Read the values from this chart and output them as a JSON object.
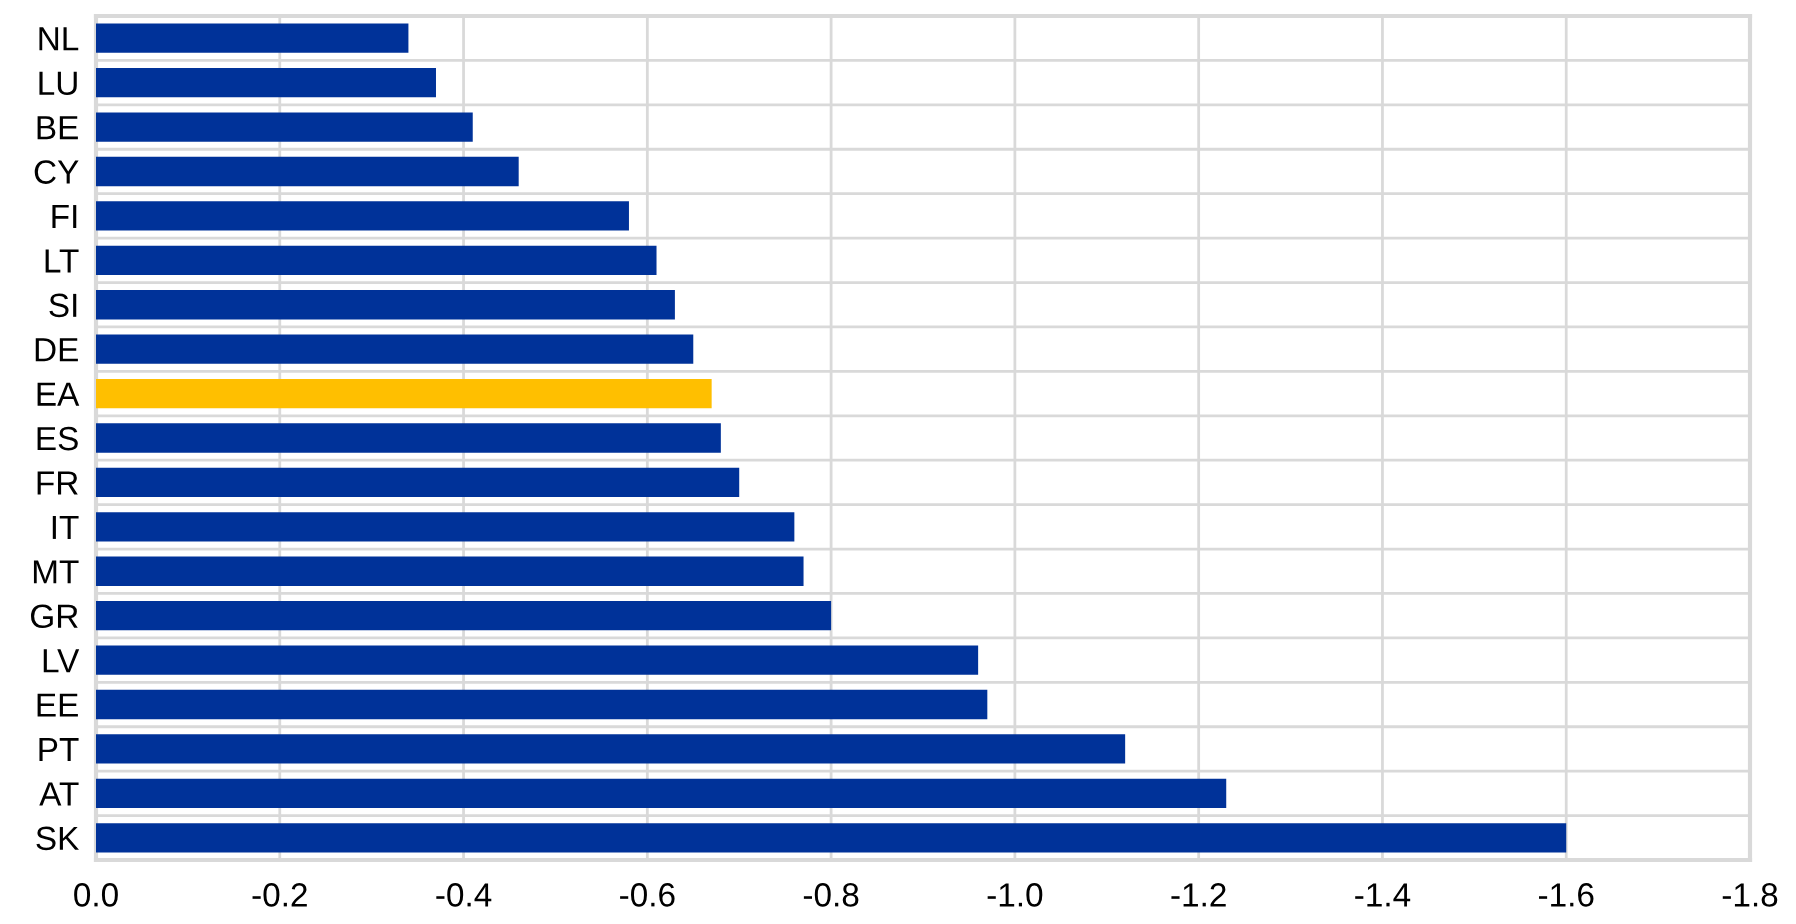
{
  "chart_data": {
    "type": "bar",
    "orientation": "horizontal",
    "categories": [
      "NL",
      "LU",
      "BE",
      "CY",
      "FI",
      "LT",
      "SI",
      "DE",
      "EA",
      "ES",
      "FR",
      "IT",
      "MT",
      "GR",
      "LV",
      "EE",
      "PT",
      "AT",
      "SK"
    ],
    "values": [
      -0.34,
      -0.37,
      -0.41,
      -0.46,
      -0.58,
      -0.61,
      -0.63,
      -0.65,
      -0.67,
      -0.68,
      -0.7,
      -0.76,
      -0.77,
      -0.8,
      -0.96,
      -0.97,
      -1.12,
      -1.23,
      -1.6
    ],
    "colors": [
      "#003299",
      "#003299",
      "#003299",
      "#003299",
      "#003299",
      "#003299",
      "#003299",
      "#003299",
      "#ffbf00",
      "#003299",
      "#003299",
      "#003299",
      "#003299",
      "#003299",
      "#003299",
      "#003299",
      "#003299",
      "#003299",
      "#003299"
    ],
    "xlim": [
      0.0,
      -1.8
    ],
    "xticks": [
      {
        "value": 0.0,
        "label": "0.0"
      },
      {
        "value": -0.2,
        "label": "-0.2"
      },
      {
        "value": -0.4,
        "label": "-0.4"
      },
      {
        "value": -0.6,
        "label": "-0.6"
      },
      {
        "value": -0.8,
        "label": "-0.8"
      },
      {
        "value": -1.0,
        "label": "-1.0"
      },
      {
        "value": -1.2,
        "label": "-1.2"
      },
      {
        "value": -1.4,
        "label": "-1.4"
      },
      {
        "value": -1.6,
        "label": "-1.6"
      },
      {
        "value": -1.8,
        "label": "-1.8"
      }
    ],
    "grid": true
  }
}
